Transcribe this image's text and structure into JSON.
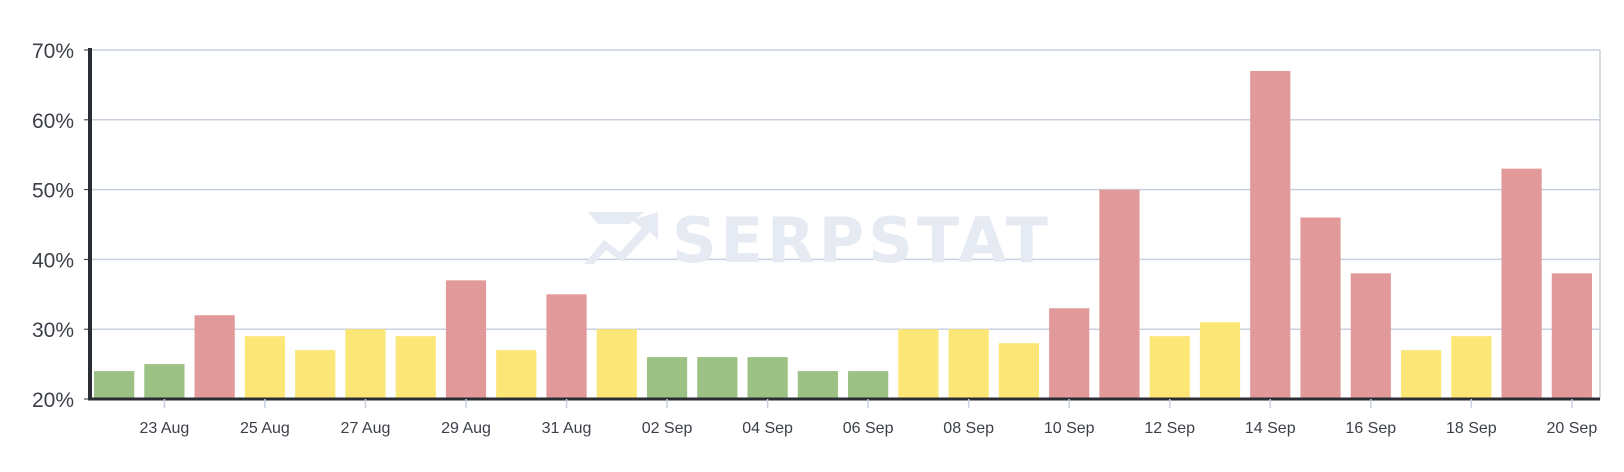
{
  "watermark": {
    "text": "SERPSTAT",
    "icon": "serpstat-logo-icon",
    "color": "#e6eaf2"
  },
  "colors": {
    "green": "#9cc184",
    "yellow": "#fbe676",
    "red": "#e19a99",
    "axis": "#2b2d35",
    "grid": "#c9d1de",
    "text": "#3b3f48"
  },
  "chart_data": {
    "type": "bar",
    "title": "",
    "xlabel": "",
    "ylabel": "",
    "ylim": [
      20,
      70
    ],
    "y_unit": "%",
    "y_ticks": [
      "20%",
      "30%",
      "40%",
      "50%",
      "60%",
      "70%"
    ],
    "y_tick_values": [
      20,
      30,
      40,
      50,
      60,
      70
    ],
    "grid": true,
    "categories": [
      "22 Aug",
      "23 Aug",
      "24 Aug",
      "25 Aug",
      "26 Aug",
      "27 Aug",
      "28 Aug",
      "29 Aug",
      "30 Aug",
      "31 Aug",
      "01 Sep",
      "02 Sep",
      "03 Sep",
      "04 Sep",
      "05 Sep",
      "06 Sep",
      "07 Sep",
      "08 Sep",
      "09 Sep",
      "10 Sep",
      "11 Sep",
      "12 Sep",
      "13 Sep",
      "14 Sep",
      "15 Sep",
      "16 Sep",
      "17 Sep",
      "18 Sep",
      "19 Sep",
      "20 Sep"
    ],
    "x_tick_labels": [
      "23 Aug",
      "25 Aug",
      "27 Aug",
      "29 Aug",
      "31 Aug",
      "02 Sep",
      "04 Sep",
      "06 Sep",
      "08 Sep",
      "10 Sep",
      "12 Sep",
      "14 Sep",
      "16 Sep",
      "18 Sep",
      "20 Sep"
    ],
    "values": [
      24,
      25,
      32,
      29,
      27,
      30,
      29,
      37,
      27,
      35,
      30,
      26,
      26,
      26,
      24,
      24,
      30,
      30,
      28,
      33,
      50,
      29,
      31,
      67,
      46,
      38,
      27,
      29,
      53,
      38
    ],
    "bar_colors": [
      "green",
      "green",
      "red",
      "yellow",
      "yellow",
      "yellow",
      "yellow",
      "red",
      "yellow",
      "red",
      "yellow",
      "green",
      "green",
      "green",
      "green",
      "green",
      "yellow",
      "yellow",
      "yellow",
      "red",
      "red",
      "yellow",
      "yellow",
      "red",
      "red",
      "red",
      "yellow",
      "yellow",
      "red",
      "red"
    ]
  }
}
